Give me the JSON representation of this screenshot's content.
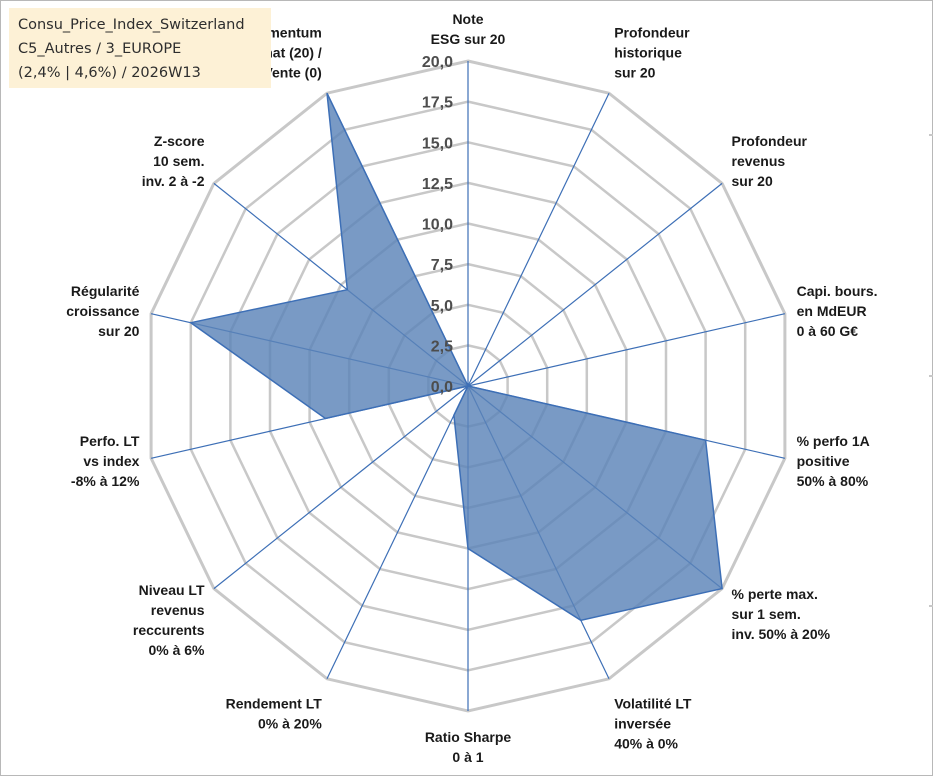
{
  "info_box": {
    "line1": "Consu_Price_Index_Switzerland",
    "line2": "C5_Autres / 3_EUROPE",
    "line3": "(2,4% | 4,6%) / 2026W13"
  },
  "colors": {
    "fill": "#5b84b8",
    "stroke": "#3d6fb6",
    "grid": "#c8c8c8",
    "spoke": "#3d6fb6",
    "background": "#ffffff",
    "info_box_bg": "#fdf1d6"
  },
  "chart_data": {
    "type": "radar",
    "title": "",
    "r_range": [
      0,
      20
    ],
    "r_tick_labels": [
      "0,0",
      "2,5",
      "5,0",
      "7,5",
      "10,0",
      "12,5",
      "15,0",
      "17,5",
      "20,0"
    ],
    "categories": [
      [
        "Note",
        "ESG sur 20"
      ],
      [
        "Profondeur",
        "historique",
        "sur 20"
      ],
      [
        "Profondeur",
        "revenus",
        "sur 20"
      ],
      [
        "Capi. bours.",
        "en MdEUR",
        "0 à 60 G€"
      ],
      [
        "% perfo 1A",
        "positive",
        "50% à 80%"
      ],
      [
        "% perte max.",
        "sur 1 sem.",
        "inv. 50% à 20%"
      ],
      [
        "Volatilité LT",
        "inversée",
        "40% à 0%"
      ],
      [
        "Ratio Sharpe",
        "0 à 1"
      ],
      [
        "Rendement LT",
        "0% à 20%"
      ],
      [
        "Niveau LT",
        "revenus",
        "reccurents",
        "0% à 6%"
      ],
      [
        "Perfo. LT",
        "vs index",
        "-8% à 12%"
      ],
      [
        "Régularité",
        "croissance",
        "sur 20"
      ],
      [
        "Z-score",
        "10 sem.",
        "inv. 2 à -2"
      ],
      [
        "Momentum",
        "Achat (20) /",
        "Vente (0)"
      ]
    ],
    "series": [
      {
        "name": "Consu_Price_Index_Switzerland",
        "values": [
          0,
          0,
          0,
          0,
          15,
          20,
          16,
          10,
          2,
          0,
          9,
          17.5,
          9.5,
          20
        ]
      }
    ]
  }
}
